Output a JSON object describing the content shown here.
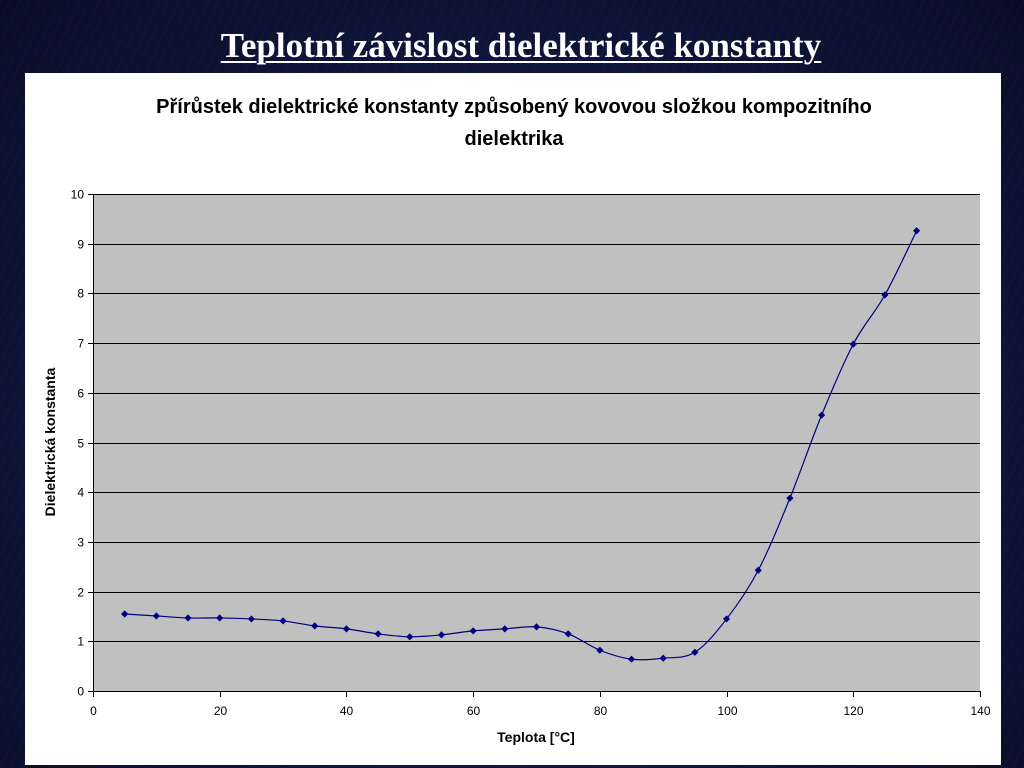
{
  "slide": {
    "title": "Teplotní závislost dielektrické konstanty"
  },
  "colors": {
    "background": "#111942",
    "panel": "#ffffff",
    "plot_area": "#c0c0c0",
    "gridline": "#000000",
    "series": "#000080"
  },
  "chart_data": {
    "type": "line",
    "title": "Přírůstek dielektrické konstanty způsobený kovovou složkou kompozitního dielektrika",
    "xlabel": "Teplota [°C]",
    "ylabel": "Dielektrická konstanta",
    "xlim": [
      0,
      140
    ],
    "ylim": [
      0,
      10
    ],
    "x_ticks": [
      0,
      20,
      40,
      60,
      80,
      100,
      120,
      140
    ],
    "y_ticks": [
      0,
      1,
      2,
      3,
      4,
      5,
      6,
      7,
      8,
      9,
      10
    ],
    "grid": "horizontal",
    "legend": "none",
    "smooth": true,
    "marker": "diamond",
    "x": [
      5,
      10,
      15,
      20,
      25,
      30,
      35,
      40,
      45,
      50,
      55,
      60,
      65,
      70,
      75,
      80,
      85,
      90,
      95,
      100,
      105,
      110,
      115,
      120,
      125,
      130
    ],
    "series": [
      {
        "values": [
          1.55,
          1.51,
          1.47,
          1.47,
          1.45,
          1.41,
          1.31,
          1.25,
          1.15,
          1.09,
          1.13,
          1.21,
          1.25,
          1.29,
          1.15,
          0.82,
          0.64,
          0.66,
          0.78,
          1.45,
          2.43,
          3.88,
          5.55,
          6.98,
          7.97,
          9.26
        ]
      }
    ]
  }
}
